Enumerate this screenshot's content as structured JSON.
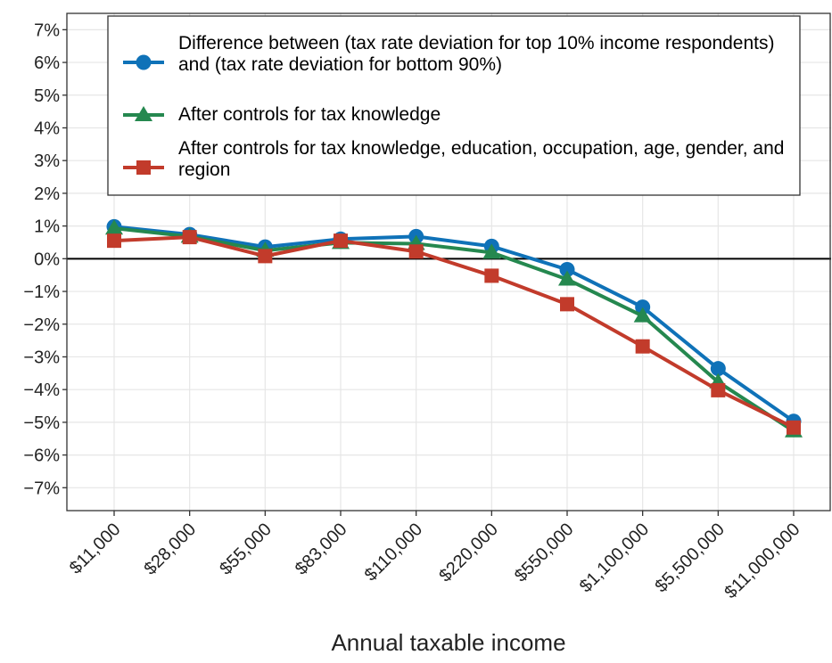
{
  "chart_data": {
    "type": "line",
    "x_label": "Annual taxable income",
    "categories": [
      "$11,000",
      "$28,000",
      "$55,000",
      "$83,000",
      "$110,000",
      "$220,000",
      "$550,000",
      "$1,100,000",
      "$5,500,000",
      "$11,000,000"
    ],
    "series": [
      {
        "name": "Difference between (tax rate deviation for top 10% income respondents) and (tax rate deviation for bottom 90%)",
        "color": "#0f72b8",
        "marker": "circle",
        "values": [
          0.98,
          0.74,
          0.36,
          0.6,
          0.68,
          0.38,
          -0.33,
          -1.48,
          -3.36,
          -4.97
        ]
      },
      {
        "name": "After controls for tax knowledge",
        "color": "#25884f",
        "marker": "triangle",
        "values": [
          0.93,
          0.68,
          0.25,
          0.49,
          0.46,
          0.19,
          -0.63,
          -1.75,
          -3.77,
          -5.27
        ]
      },
      {
        "name": "After controls for tax knowledge, education, occupation, age, gender, and region",
        "color": "#c23b2b",
        "marker": "square",
        "values": [
          0.55,
          0.66,
          0.08,
          0.55,
          0.22,
          -0.52,
          -1.39,
          -2.68,
          -4.02,
          -5.16
        ]
      }
    ],
    "ylim": [
      -7.7,
      7.5
    ],
    "yticks": [
      {
        "value": -7,
        "label": "−7%"
      },
      {
        "value": -6,
        "label": "−6%"
      },
      {
        "value": -5,
        "label": "−5%"
      },
      {
        "value": -4,
        "label": "−4%"
      },
      {
        "value": -3,
        "label": "−3%"
      },
      {
        "value": -2,
        "label": "−2%"
      },
      {
        "value": -1,
        "label": "−1%"
      },
      {
        "value": 0,
        "label": "0%"
      },
      {
        "value": 1,
        "label": "1%"
      },
      {
        "value": 2,
        "label": "2%"
      },
      {
        "value": 3,
        "label": "3%"
      },
      {
        "value": 4,
        "label": "4%"
      },
      {
        "value": 5,
        "label": "5%"
      },
      {
        "value": 6,
        "label": "6%"
      },
      {
        "value": 7,
        "label": "7%"
      }
    ],
    "grid": true,
    "legend": "top"
  }
}
